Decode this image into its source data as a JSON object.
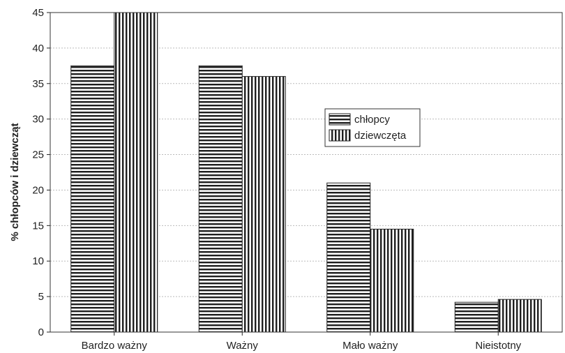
{
  "chart_data": {
    "type": "bar",
    "title": "",
    "xlabel": "",
    "ylabel": "% chłopców i dziewcząt",
    "categories": [
      "Bardzo ważny",
      "Ważny",
      "Mało ważny",
      "Nieistotny"
    ],
    "series": [
      {
        "name": "chłopcy",
        "values": [
          37.5,
          37.5,
          21,
          4.2
        ],
        "pattern": "horizontal-stripes"
      },
      {
        "name": "dziewczęta",
        "values": [
          45,
          36,
          14.5,
          4.6
        ],
        "pattern": "vertical-stripes"
      }
    ],
    "ylim": [
      0,
      45
    ],
    "yticks": [
      "0",
      "5",
      "10",
      "15",
      "20",
      "25",
      "30",
      "35",
      "40",
      "45"
    ],
    "grid": true,
    "legend_position": "center-right",
    "colors": {
      "stroke": "#222222",
      "fill": "#ffffff",
      "grid": "#bbbbbb"
    }
  }
}
